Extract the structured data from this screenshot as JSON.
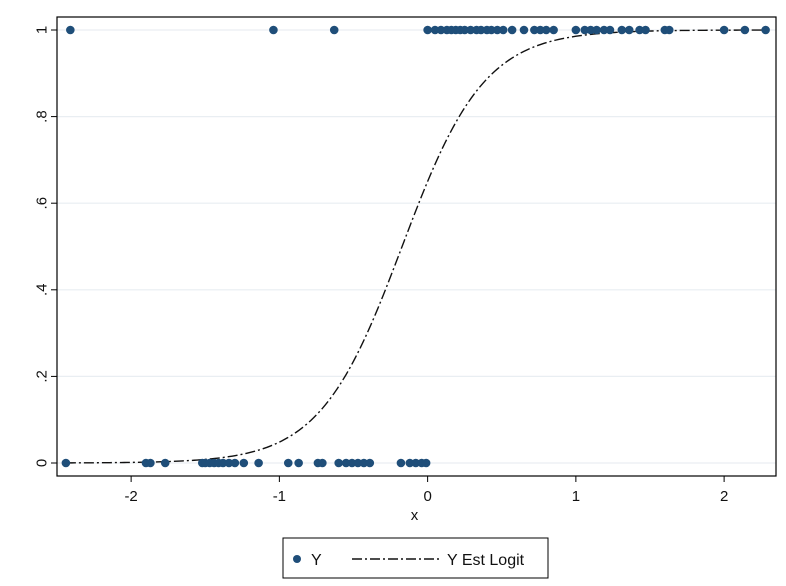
{
  "chart_data": {
    "type": "scatter",
    "xlabel": "x",
    "ylabel": "",
    "xlim": [
      -2.5,
      2.35
    ],
    "ylim": [
      -0.03,
      1.03
    ],
    "x_ticks": [
      {
        "value": -2,
        "label": "-2"
      },
      {
        "value": -1,
        "label": "-1"
      },
      {
        "value": 0,
        "label": "0"
      },
      {
        "value": 1,
        "label": "1"
      },
      {
        "value": 2,
        "label": "2"
      }
    ],
    "y_ticks": [
      {
        "value": 0,
        "label": "0"
      },
      {
        "value": 0.2,
        "label": ".2"
      },
      {
        "value": 0.4,
        "label": ".4"
      },
      {
        "value": 0.6,
        "label": ".6"
      },
      {
        "value": 0.8,
        "label": ".8"
      },
      {
        "value": 1,
        "label": "1"
      }
    ],
    "grid": "horizontal",
    "legend_position": "bottom",
    "series": [
      {
        "name": "Y",
        "kind": "scatter",
        "color": "#1f4e79",
        "points": [
          [
            -2.41,
            1
          ],
          [
            -1.04,
            1
          ],
          [
            -0.63,
            1
          ],
          [
            0.0,
            1
          ],
          [
            0.05,
            1
          ],
          [
            0.09,
            1
          ],
          [
            0.13,
            1
          ],
          [
            0.16,
            1
          ],
          [
            0.19,
            1
          ],
          [
            0.22,
            1
          ],
          [
            0.25,
            1
          ],
          [
            0.29,
            1
          ],
          [
            0.33,
            1
          ],
          [
            0.36,
            1
          ],
          [
            0.4,
            1
          ],
          [
            0.43,
            1
          ],
          [
            0.47,
            1
          ],
          [
            0.51,
            1
          ],
          [
            0.57,
            1
          ],
          [
            0.65,
            1
          ],
          [
            0.72,
            1
          ],
          [
            0.76,
            1
          ],
          [
            0.8,
            1
          ],
          [
            0.85,
            1
          ],
          [
            1.0,
            1
          ],
          [
            1.06,
            1
          ],
          [
            1.1,
            1
          ],
          [
            1.14,
            1
          ],
          [
            1.19,
            1
          ],
          [
            1.23,
            1
          ],
          [
            1.31,
            1
          ],
          [
            1.36,
            1
          ],
          [
            1.43,
            1
          ],
          [
            1.47,
            1
          ],
          [
            1.6,
            1
          ],
          [
            1.63,
            1
          ],
          [
            2.0,
            1
          ],
          [
            2.14,
            1
          ],
          [
            2.28,
            1
          ],
          [
            -2.44,
            0
          ],
          [
            -1.9,
            0
          ],
          [
            -1.87,
            0
          ],
          [
            -1.77,
            0
          ],
          [
            -1.52,
            0
          ],
          [
            -1.5,
            0
          ],
          [
            -1.47,
            0
          ],
          [
            -1.44,
            0
          ],
          [
            -1.41,
            0
          ],
          [
            -1.38,
            0
          ],
          [
            -1.34,
            0
          ],
          [
            -1.3,
            0
          ],
          [
            -1.24,
            0
          ],
          [
            -1.14,
            0
          ],
          [
            -0.94,
            0
          ],
          [
            -0.87,
            0
          ],
          [
            -0.74,
            0
          ],
          [
            -0.71,
            0
          ],
          [
            -0.6,
            0
          ],
          [
            -0.55,
            0
          ],
          [
            -0.51,
            0
          ],
          [
            -0.47,
            0
          ],
          [
            -0.43,
            0
          ],
          [
            -0.39,
            0
          ],
          [
            -0.18,
            0
          ],
          [
            -0.12,
            0
          ],
          [
            -0.08,
            0
          ],
          [
            -0.04,
            0
          ],
          [
            -0.01,
            0
          ]
        ]
      },
      {
        "name": "Y Est Logit",
        "kind": "line",
        "style": "dash-dot",
        "color": "#111111",
        "intercept": 0.62,
        "slope": 3.6
      }
    ]
  }
}
